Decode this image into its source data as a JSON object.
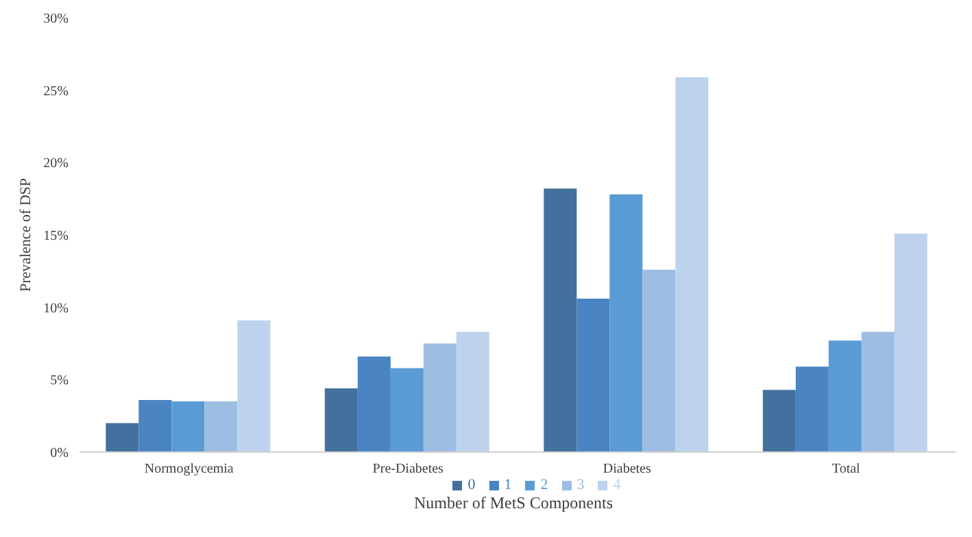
{
  "chart_data": {
    "type": "bar",
    "xlabel": "Number of  MetS Components",
    "ylabel": "Prevalence of DSP",
    "categories": [
      "Normoglycemia",
      "Pre-Diabetes",
      "Diabetes",
      "Total"
    ],
    "series": [
      {
        "name": "0",
        "color": "#44709d",
        "values": [
          2.0,
          4.4,
          18.2,
          4.3
        ]
      },
      {
        "name": "1",
        "color": "#4a84c2",
        "values": [
          3.6,
          6.6,
          10.6,
          5.9
        ]
      },
      {
        "name": "2",
        "color": "#5b9bd5",
        "values": [
          3.5,
          5.8,
          17.8,
          7.7
        ]
      },
      {
        "name": "3",
        "color": "#9dbde3",
        "values": [
          3.5,
          7.5,
          12.6,
          8.3
        ]
      },
      {
        "name": "4",
        "color": "#bdd3ed",
        "values": [
          9.1,
          8.3,
          25.9,
          15.1
        ]
      }
    ],
    "ylim": [
      0,
      30
    ],
    "yticks": [
      {
        "value": 0,
        "label": "0%"
      },
      {
        "value": 5,
        "label": "5%"
      },
      {
        "value": 10,
        "label": "10%"
      },
      {
        "value": 15,
        "label": "15%"
      },
      {
        "value": 20,
        "label": "20%"
      },
      {
        "value": 25,
        "label": "25%"
      },
      {
        "value": 30,
        "label": "30%"
      }
    ],
    "grid": false,
    "legend": "bottom"
  }
}
